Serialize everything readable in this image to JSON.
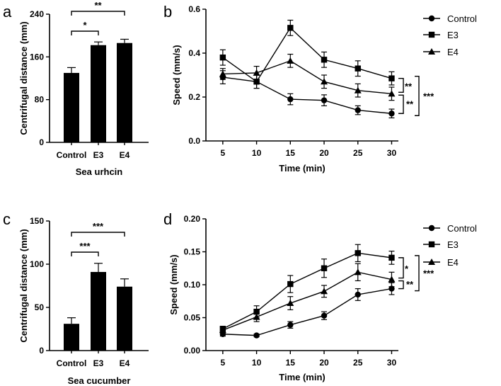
{
  "chart_data": [
    {
      "panel": "a",
      "type": "bar",
      "categories": [
        "Control",
        "E3",
        "E4"
      ],
      "values": [
        130,
        182,
        186
      ],
      "errors": [
        10,
        6,
        7
      ],
      "ylabel": "Centrifugal distance (mm)",
      "xlabel": "Sea urhcin",
      "ylim": [
        0,
        240
      ],
      "yticks": [
        0,
        80,
        160,
        240
      ],
      "significance": [
        {
          "from": 0,
          "to": 1,
          "label": "*"
        },
        {
          "from": 0,
          "to": 2,
          "label": "**"
        }
      ],
      "color": "#000000"
    },
    {
      "panel": "b",
      "type": "line",
      "x": [
        5,
        10,
        15,
        20,
        25,
        30
      ],
      "xticks": [
        5,
        10,
        15,
        20,
        25,
        30
      ],
      "series": [
        {
          "name": "Control",
          "marker": "circle",
          "values": [
            0.29,
            0.27,
            0.19,
            0.185,
            0.14,
            0.125
          ],
          "errors": [
            0.03,
            0.03,
            0.025,
            0.025,
            0.02,
            0.02
          ]
        },
        {
          "name": "E3",
          "marker": "square",
          "values": [
            0.38,
            0.27,
            0.515,
            0.37,
            0.33,
            0.285
          ],
          "errors": [
            0.035,
            0.03,
            0.035,
            0.035,
            0.035,
            0.03
          ]
        },
        {
          "name": "E4",
          "marker": "triangle",
          "values": [
            0.305,
            0.31,
            0.365,
            0.27,
            0.23,
            0.215
          ],
          "errors": [
            0.025,
            0.03,
            0.03,
            0.03,
            0.03,
            0.03
          ]
        }
      ],
      "ylabel": "Speed (mm/s)",
      "xlabel": "Time (min)",
      "xlim": [
        2.5,
        31
      ],
      "ylim": [
        0,
        0.6
      ],
      "yticks": [
        "0.0",
        "0.2",
        "0.4",
        "0.6"
      ],
      "significance": [
        {
          "series": [
            "E3",
            "E4"
          ],
          "label": "**"
        },
        {
          "series": [
            "E4",
            "Control"
          ],
          "label": "**"
        },
        {
          "series": [
            "E3",
            "Control"
          ],
          "label": "***"
        }
      ],
      "legend": "top-right"
    },
    {
      "panel": "c",
      "type": "bar",
      "categories": [
        "Control",
        "E3",
        "E4"
      ],
      "values": [
        31,
        91,
        74
      ],
      "errors": [
        7,
        10,
        9
      ],
      "ylabel": "Centrifugal distance (mm)",
      "xlabel": "Sea cucumber",
      "ylim": [
        0,
        150
      ],
      "yticks": [
        0,
        50,
        100,
        150
      ],
      "significance": [
        {
          "from": 0,
          "to": 1,
          "label": "***"
        },
        {
          "from": 0,
          "to": 2,
          "label": "***"
        }
      ],
      "color": "#000000"
    },
    {
      "panel": "d",
      "type": "line",
      "x": [
        5,
        10,
        15,
        20,
        25,
        30
      ],
      "xticks": [
        5,
        10,
        15,
        20,
        25,
        30
      ],
      "series": [
        {
          "name": "Control",
          "marker": "circle",
          "values": [
            0.025,
            0.023,
            0.039,
            0.053,
            0.085,
            0.094
          ],
          "errors": [
            0.003,
            0.002,
            0.005,
            0.006,
            0.009,
            0.009
          ]
        },
        {
          "name": "E3",
          "marker": "square",
          "values": [
            0.033,
            0.059,
            0.101,
            0.125,
            0.148,
            0.141
          ],
          "errors": [
            0.004,
            0.009,
            0.013,
            0.014,
            0.013,
            0.01
          ]
        },
        {
          "name": "E4",
          "marker": "triangle",
          "values": [
            0.031,
            0.051,
            0.072,
            0.09,
            0.119,
            0.108
          ],
          "errors": [
            0.004,
            0.007,
            0.01,
            0.009,
            0.013,
            0.011
          ]
        }
      ],
      "ylabel": "Speed (mm/s)",
      "xlabel": "Time (min)",
      "xlim": [
        2.5,
        31
      ],
      "ylim": [
        0,
        0.2
      ],
      "yticks": [
        "0.00",
        "0.05",
        "0.10",
        "0.15",
        "0.20"
      ],
      "significance": [
        {
          "series": [
            "E3",
            "E4"
          ],
          "label": "*"
        },
        {
          "series": [
            "E4",
            "Control"
          ],
          "label": "**"
        },
        {
          "series": [
            "E3",
            "Control"
          ],
          "label": "***"
        }
      ],
      "legend": "top-right"
    }
  ]
}
